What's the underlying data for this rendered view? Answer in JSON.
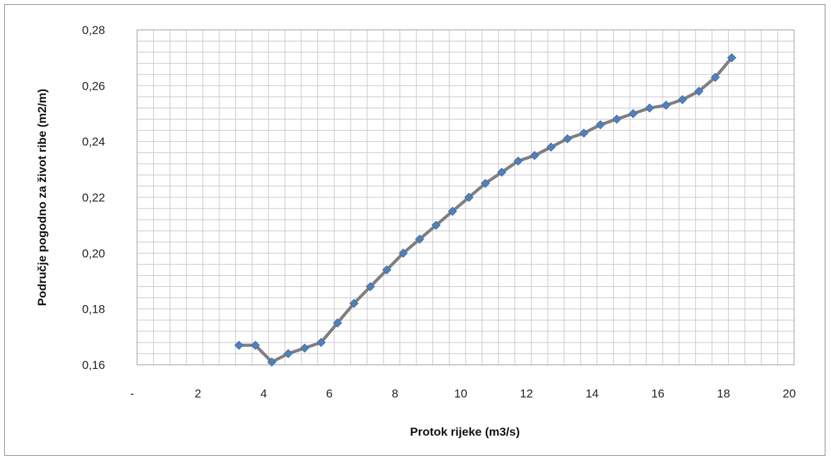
{
  "chart_data": {
    "type": "line",
    "title": "",
    "xlabel": "Protok rijeke (m3/s)",
    "ylabel": "Područje pogodno za život ribe (m2/m)",
    "xlim": [
      0,
      20
    ],
    "ylim": [
      0.16,
      0.28
    ],
    "x_ticks": [
      {
        "value": 0,
        "label": "-"
      },
      {
        "value": 2,
        "label": "2"
      },
      {
        "value": 4,
        "label": "4"
      },
      {
        "value": 6,
        "label": "6"
      },
      {
        "value": 8,
        "label": "8"
      },
      {
        "value": 10,
        "label": "10"
      },
      {
        "value": 12,
        "label": "12"
      },
      {
        "value": 14,
        "label": "14"
      },
      {
        "value": 16,
        "label": "16"
      },
      {
        "value": 18,
        "label": "18"
      },
      {
        "value": 20,
        "label": "20"
      }
    ],
    "y_ticks": [
      {
        "value": 0.16,
        "label": "0,16"
      },
      {
        "value": 0.18,
        "label": "0,18"
      },
      {
        "value": 0.2,
        "label": "0,20"
      },
      {
        "value": 0.22,
        "label": "0,22"
      },
      {
        "value": 0.24,
        "label": "0,24"
      },
      {
        "value": 0.26,
        "label": "0,26"
      },
      {
        "value": 0.28,
        "label": "0,28"
      }
    ],
    "grid": true,
    "minor_grid": true,
    "legend": "none",
    "line_color": "#7f7f7f",
    "marker_color": "#4f81bd",
    "marker": "diamond",
    "series": [
      {
        "x": [
          3.1,
          3.6,
          4.1,
          4.6,
          5.1,
          5.6,
          6.1,
          6.6,
          7.1,
          7.6,
          8.1,
          8.6,
          9.1,
          9.6,
          10.1,
          10.6,
          11.1,
          11.6,
          12.1,
          12.6,
          13.1,
          13.6,
          14.1,
          14.6,
          15.1,
          15.6,
          16.1,
          16.6,
          17.1,
          17.6,
          18.1
        ],
        "values": [
          0.167,
          0.167,
          0.161,
          0.164,
          0.166,
          0.168,
          0.175,
          0.182,
          0.188,
          0.194,
          0.2,
          0.205,
          0.21,
          0.215,
          0.22,
          0.225,
          0.229,
          0.233,
          0.235,
          0.238,
          0.241,
          0.243,
          0.246,
          0.248,
          0.25,
          0.252,
          0.253,
          0.255,
          0.258,
          0.263,
          0.27
        ]
      }
    ]
  }
}
